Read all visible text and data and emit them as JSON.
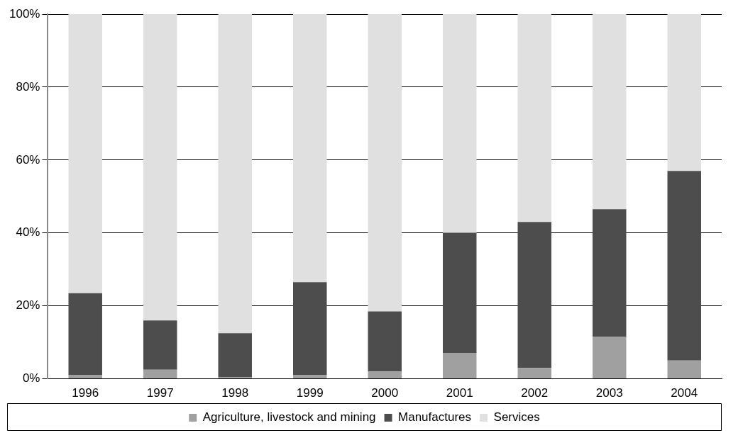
{
  "chart_data": {
    "type": "bar",
    "stacked": true,
    "categories": [
      "1996",
      "1997",
      "1998",
      "1999",
      "2000",
      "2001",
      "2002",
      "2003",
      "2004"
    ],
    "series": [
      {
        "name": "Agriculture, livestock and mining",
        "color": "#a0a0a0",
        "values": [
          1,
          2.5,
          0.5,
          1,
          2,
          7,
          3,
          11.5,
          5
        ]
      },
      {
        "name": "Manufactures",
        "color": "#4d4d4d",
        "values": [
          22.5,
          13.5,
          12,
          25.5,
          16.5,
          33,
          40,
          35,
          52
        ]
      },
      {
        "name": "Services",
        "color": "#e0e0e0",
        "values": [
          76.5,
          84,
          87.5,
          73.5,
          81.5,
          60,
          57,
          53.5,
          43
        ]
      }
    ],
    "ylim": [
      0,
      100
    ],
    "yticks": [
      {
        "value": 0,
        "label": "0%"
      },
      {
        "value": 20,
        "label": "20%"
      },
      {
        "value": 40,
        "label": "40%"
      },
      {
        "value": 60,
        "label": "60%"
      },
      {
        "value": 80,
        "label": "80%"
      },
      {
        "value": 100,
        "label": "100%"
      }
    ],
    "grid": "y",
    "legend": "bottom"
  }
}
